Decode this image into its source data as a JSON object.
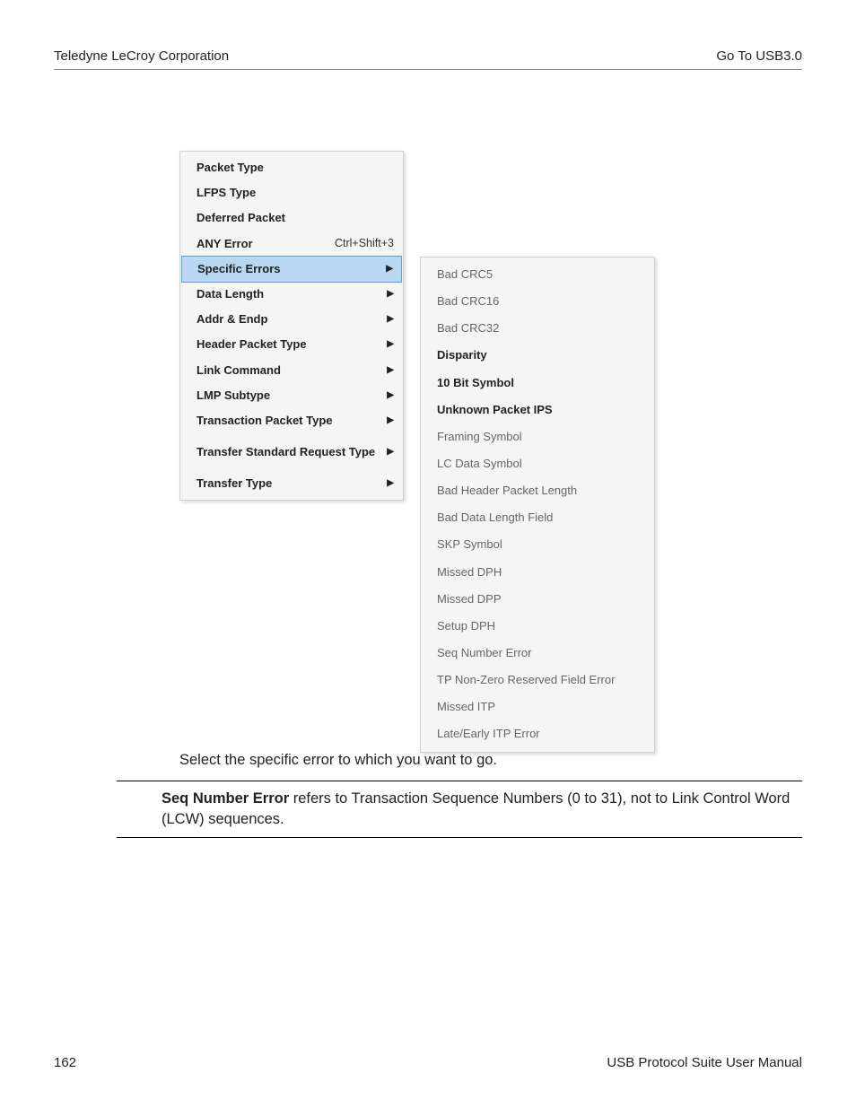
{
  "header": {
    "left": "Teledyne LeCroy Corporation",
    "right": "Go To USB3.0"
  },
  "menu1": {
    "items": [
      {
        "label": "Packet Type",
        "shortcut": "",
        "arrow": false,
        "highlighted": false,
        "tall": false
      },
      {
        "label": "LFPS Type",
        "shortcut": "",
        "arrow": false,
        "highlighted": false,
        "tall": false
      },
      {
        "label": "Deferred Packet",
        "shortcut": "",
        "arrow": false,
        "highlighted": false,
        "tall": false
      },
      {
        "label": "ANY Error",
        "shortcut": "Ctrl+Shift+3",
        "arrow": false,
        "highlighted": false,
        "tall": false
      },
      {
        "label": "Specific Errors",
        "shortcut": "",
        "arrow": true,
        "highlighted": true,
        "tall": false
      },
      {
        "label": "Data Length",
        "shortcut": "",
        "arrow": true,
        "highlighted": false,
        "tall": false
      },
      {
        "label": "Addr & Endp",
        "shortcut": "",
        "arrow": true,
        "highlighted": false,
        "tall": false
      },
      {
        "label": "Header Packet Type",
        "shortcut": "",
        "arrow": true,
        "highlighted": false,
        "tall": false
      },
      {
        "label": "Link Command",
        "shortcut": "",
        "arrow": true,
        "highlighted": false,
        "tall": false
      },
      {
        "label": "LMP Subtype",
        "shortcut": "",
        "arrow": true,
        "highlighted": false,
        "tall": false
      },
      {
        "label": "Transaction Packet Type",
        "shortcut": "",
        "arrow": true,
        "highlighted": false,
        "tall": false
      },
      {
        "label": "Transfer Standard Request Type",
        "shortcut": "",
        "arrow": true,
        "highlighted": false,
        "tall": true
      },
      {
        "label": "Transfer Type",
        "shortcut": "",
        "arrow": true,
        "highlighted": false,
        "tall": false
      }
    ]
  },
  "menu2": {
    "items": [
      {
        "label": "Bad CRC5",
        "dark": false
      },
      {
        "label": "Bad CRC16",
        "dark": false
      },
      {
        "label": "Bad CRC32",
        "dark": false
      },
      {
        "label": "Disparity",
        "dark": true
      },
      {
        "label": "10 Bit Symbol",
        "dark": true
      },
      {
        "label": "Unknown Packet IPS",
        "dark": true
      },
      {
        "label": "Framing Symbol",
        "dark": false
      },
      {
        "label": "LC Data Symbol",
        "dark": false
      },
      {
        "label": "Bad Header Packet Length",
        "dark": false
      },
      {
        "label": "Bad Data Length Field",
        "dark": false
      },
      {
        "label": "SKP Symbol",
        "dark": false
      },
      {
        "label": "Missed DPH",
        "dark": false
      },
      {
        "label": "Missed DPP",
        "dark": false
      },
      {
        "label": "Setup DPH",
        "dark": false
      },
      {
        "label": "Seq Number Error",
        "dark": false
      },
      {
        "label": "TP Non-Zero Reserved Field Error",
        "dark": false
      },
      {
        "label": "Missed ITP",
        "dark": false
      },
      {
        "label": "Late/Early ITP Error",
        "dark": false
      }
    ]
  },
  "body_text": "Select the specific error to which you want to go.",
  "note": {
    "bold": "Seq Number Error",
    "rest": " refers to Transaction Sequence Numbers (0 to 31), not to Link Control Word (LCW) sequences."
  },
  "footer": {
    "page": "162",
    "title": "USB Protocol Suite User Manual"
  },
  "colors": {
    "highlight_bg": "#b7d7f3",
    "highlight_border": "#5a9fd4",
    "menu_bg": "#f5f5f5",
    "menu_border": "#d0d0d0",
    "text_dark": "#222222",
    "text_grey": "#666666"
  }
}
